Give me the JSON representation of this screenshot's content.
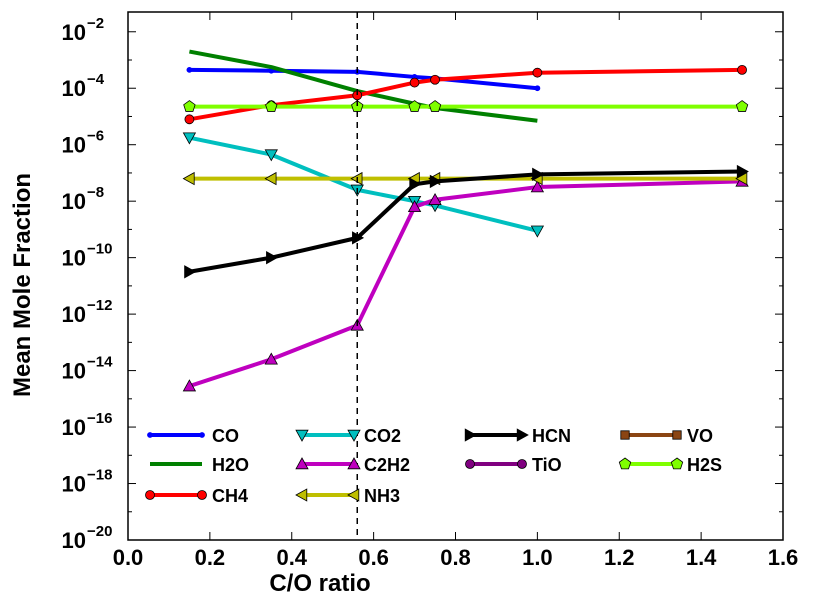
{
  "chart_data": {
    "type": "line",
    "title": "",
    "xlabel": "C/O ratio",
    "ylabel": "Mean Mole Fraction",
    "xlim": [
      0.0,
      1.6
    ],
    "ylim_log10": [
      -20,
      -1.3
    ],
    "y_scale": "log",
    "x_ticks": [
      "0.0",
      "0.2",
      "0.4",
      "0.6",
      "0.8",
      "1.0",
      "1.2",
      "1.4",
      "1.6"
    ],
    "x_tick_values": [
      0.0,
      0.2,
      0.4,
      0.6,
      0.8,
      1.0,
      1.2,
      1.4,
      1.6
    ],
    "y_tick_exponents": [
      -2,
      -4,
      -6,
      -8,
      -10,
      -12,
      -14,
      -16,
      -18,
      -20
    ],
    "y_tick_labels": [
      "10",
      "10",
      "10",
      "10",
      "10",
      "10",
      "10",
      "10",
      "10",
      "10"
    ],
    "y_tick_superscripts": [
      "−2",
      "−4",
      "−6",
      "−8",
      "−10",
      "−12",
      "−14",
      "−16",
      "−18",
      "−20"
    ],
    "vertical_line": {
      "x": 0.56,
      "style": "dashed"
    },
    "legend_position": "lower-center",
    "series": [
      {
        "name": "CO",
        "color": "#0000ff",
        "marker": "point",
        "x": [
          0.15,
          0.35,
          0.56,
          0.7,
          0.75,
          1.0
        ],
        "log10_y": [
          -3.35,
          -3.38,
          -3.42,
          -3.6,
          -3.65,
          -4.0
        ]
      },
      {
        "name": "H2O",
        "color": "#008000",
        "marker": "none",
        "x": [
          0.15,
          0.35,
          0.56,
          0.7,
          0.75,
          1.0
        ],
        "log10_y": [
          -2.7,
          -3.25,
          -4.1,
          -4.55,
          -4.7,
          -5.15
        ]
      },
      {
        "name": "CH4",
        "color": "#ff0000",
        "marker": "circle",
        "x": [
          0.15,
          0.35,
          0.56,
          0.7,
          0.75,
          1.0,
          1.5
        ],
        "log10_y": [
          -5.1,
          -4.6,
          -4.25,
          -3.8,
          -3.7,
          -3.45,
          -3.35
        ]
      },
      {
        "name": "CO2",
        "color": "#00bfbf",
        "marker": "triangle-down",
        "x": [
          0.15,
          0.35,
          0.56,
          0.7,
          0.75,
          1.0
        ],
        "log10_y": [
          -5.75,
          -6.35,
          -7.6,
          -8.0,
          -8.15,
          -9.05
        ]
      },
      {
        "name": "C2H2",
        "color": "#bf00bf",
        "marker": "triangle-up",
        "x": [
          0.15,
          0.35,
          0.56,
          0.7,
          0.75,
          1.0,
          1.5
        ],
        "log10_y": [
          -14.55,
          -13.6,
          -12.4,
          -8.2,
          -7.95,
          -7.5,
          -7.3
        ]
      },
      {
        "name": "NH3",
        "color": "#bfbf00",
        "marker": "triangle-left",
        "x": [
          0.15,
          0.35,
          0.56,
          0.7,
          0.75,
          1.0,
          1.5
        ],
        "log10_y": [
          -7.2,
          -7.2,
          -7.2,
          -7.2,
          -7.2,
          -7.2,
          -7.2
        ]
      },
      {
        "name": "HCN",
        "color": "#000000",
        "marker": "triangle-right",
        "x": [
          0.15,
          0.35,
          0.56,
          0.7,
          0.75,
          1.0,
          1.5
        ],
        "log10_y": [
          -10.5,
          -10.0,
          -9.3,
          -7.4,
          -7.3,
          -7.05,
          -6.95
        ]
      },
      {
        "name": "TiO",
        "color": "#800080",
        "marker": "circle",
        "x": [],
        "log10_y": []
      },
      {
        "name": "VO",
        "color": "#8b4513",
        "marker": "square",
        "x": [],
        "log10_y": []
      },
      {
        "name": "H2S",
        "color": "#7fff00",
        "marker": "pentagon",
        "x": [
          0.15,
          0.35,
          0.56,
          0.7,
          0.75,
          1.5
        ],
        "log10_y": [
          -4.65,
          -4.65,
          -4.65,
          -4.65,
          -4.65,
          -4.65
        ]
      }
    ],
    "legend_order": [
      "CO",
      "CO2",
      "HCN",
      "VO",
      "H2O",
      "C2H2",
      "TiO",
      "H2S",
      "CH4",
      "NH3"
    ]
  }
}
